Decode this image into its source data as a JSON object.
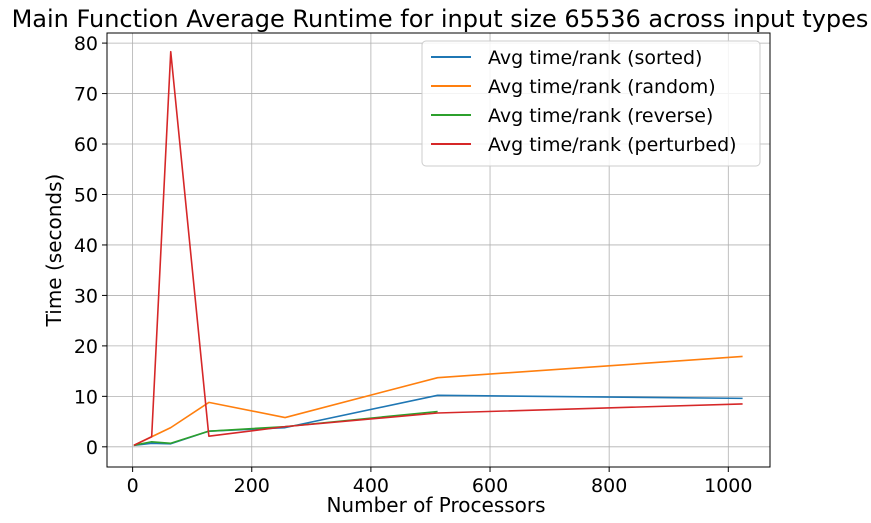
{
  "chart_data": {
    "type": "line",
    "title": "Main Function Average Runtime for input size 65536 across input types",
    "xlabel": "Number of Processors",
    "ylabel": "Time (seconds)",
    "xlim": [
      -43,
      1070
    ],
    "ylim": [
      -4,
      82
    ],
    "xticks": [
      0,
      200,
      400,
      600,
      800,
      1000
    ],
    "yticks": [
      0,
      10,
      20,
      30,
      40,
      50,
      60,
      70,
      80
    ],
    "grid": true,
    "legend_position": "top-right",
    "series": [
      {
        "name": "Avg time/rank (sorted)",
        "color": "#1f77b4",
        "x": [
          2,
          32,
          64,
          128,
          256,
          512,
          1024
        ],
        "y": [
          0.3,
          0.7,
          0.6,
          3.1,
          3.8,
          10.2,
          9.6
        ]
      },
      {
        "name": "Avg time/rank (random)",
        "color": "#ff7f0e",
        "x": [
          2,
          32,
          64,
          128,
          256,
          512,
          1024
        ],
        "y": [
          0.3,
          2.0,
          3.8,
          8.8,
          5.8,
          13.7,
          17.9
        ]
      },
      {
        "name": "Avg time/rank (reverse)",
        "color": "#2ca02c",
        "x": [
          2,
          32,
          64,
          128,
          256,
          512
        ],
        "y": [
          0.3,
          1.0,
          0.7,
          3.1,
          4.0,
          7.0
        ]
      },
      {
        "name": "Avg time/rank (perturbed)",
        "color": "#d62728",
        "x": [
          2,
          32,
          64,
          128,
          256,
          512,
          1024
        ],
        "y": [
          0.3,
          2.0,
          78.3,
          2.1,
          4.0,
          6.7,
          8.5
        ]
      }
    ]
  }
}
